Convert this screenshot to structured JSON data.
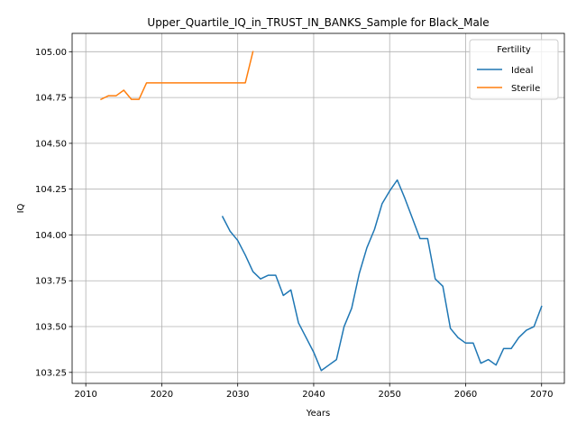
{
  "chart_data": {
    "type": "line",
    "title": "Upper_Quartile_IQ_in_TRUST_IN_BANKS_Sample for Black_Male",
    "xlabel": "Years",
    "ylabel": "IQ",
    "xlim": [
      2008.2,
      2073.0
    ],
    "ylim": [
      103.19,
      105.1
    ],
    "xticks": [
      2010,
      2020,
      2030,
      2040,
      2050,
      2060,
      2070
    ],
    "yticks": [
      103.25,
      103.5,
      103.75,
      104.0,
      104.25,
      104.5,
      104.75,
      105.0
    ],
    "ytick_labels": [
      "103.25",
      "103.50",
      "103.75",
      "104.00",
      "104.25",
      "104.50",
      "104.75",
      "105.00"
    ],
    "grid": true,
    "legend": {
      "title": "Fertility",
      "placement": "top-right"
    },
    "series": [
      {
        "name": "Ideal",
        "color": "#1f77b4",
        "x": [
          2028,
          2029,
          2030,
          2031,
          2032,
          2033,
          2034,
          2035,
          2036,
          2037,
          2038,
          2039,
          2040,
          2041,
          2042,
          2043,
          2044,
          2045,
          2046,
          2047,
          2048,
          2049,
          2050,
          2051,
          2052,
          2053,
          2054,
          2055,
          2056,
          2057,
          2058,
          2059,
          2060,
          2061,
          2062,
          2063,
          2064,
          2065,
          2066,
          2067,
          2068,
          2069,
          2070
        ],
        "y": [
          104.1,
          104.02,
          103.97,
          103.89,
          103.8,
          103.76,
          103.78,
          103.78,
          103.67,
          103.7,
          103.52,
          103.44,
          103.36,
          103.26,
          103.29,
          103.32,
          103.5,
          103.6,
          103.79,
          103.93,
          104.03,
          104.17,
          104.24,
          104.3,
          104.2,
          104.09,
          103.98,
          103.98,
          103.76,
          103.72,
          103.49,
          103.44,
          103.41,
          103.41,
          103.3,
          103.32,
          103.29,
          103.38,
          103.38,
          103.44,
          103.48,
          103.5,
          103.61
        ]
      },
      {
        "name": "Sterile",
        "color": "#ff7f0e",
        "x": [
          2012,
          2013,
          2014,
          2015,
          2016,
          2017,
          2018,
          2019,
          2020,
          2021,
          2022,
          2023,
          2024,
          2025,
          2026,
          2027,
          2028,
          2029,
          2030,
          2031,
          2032
        ],
        "y": [
          104.74,
          104.76,
          104.76,
          104.79,
          104.74,
          104.74,
          104.83,
          104.83,
          104.83,
          104.83,
          104.83,
          104.83,
          104.83,
          104.83,
          104.83,
          104.83,
          104.83,
          104.83,
          104.83,
          104.83,
          105.0
        ]
      }
    ]
  }
}
